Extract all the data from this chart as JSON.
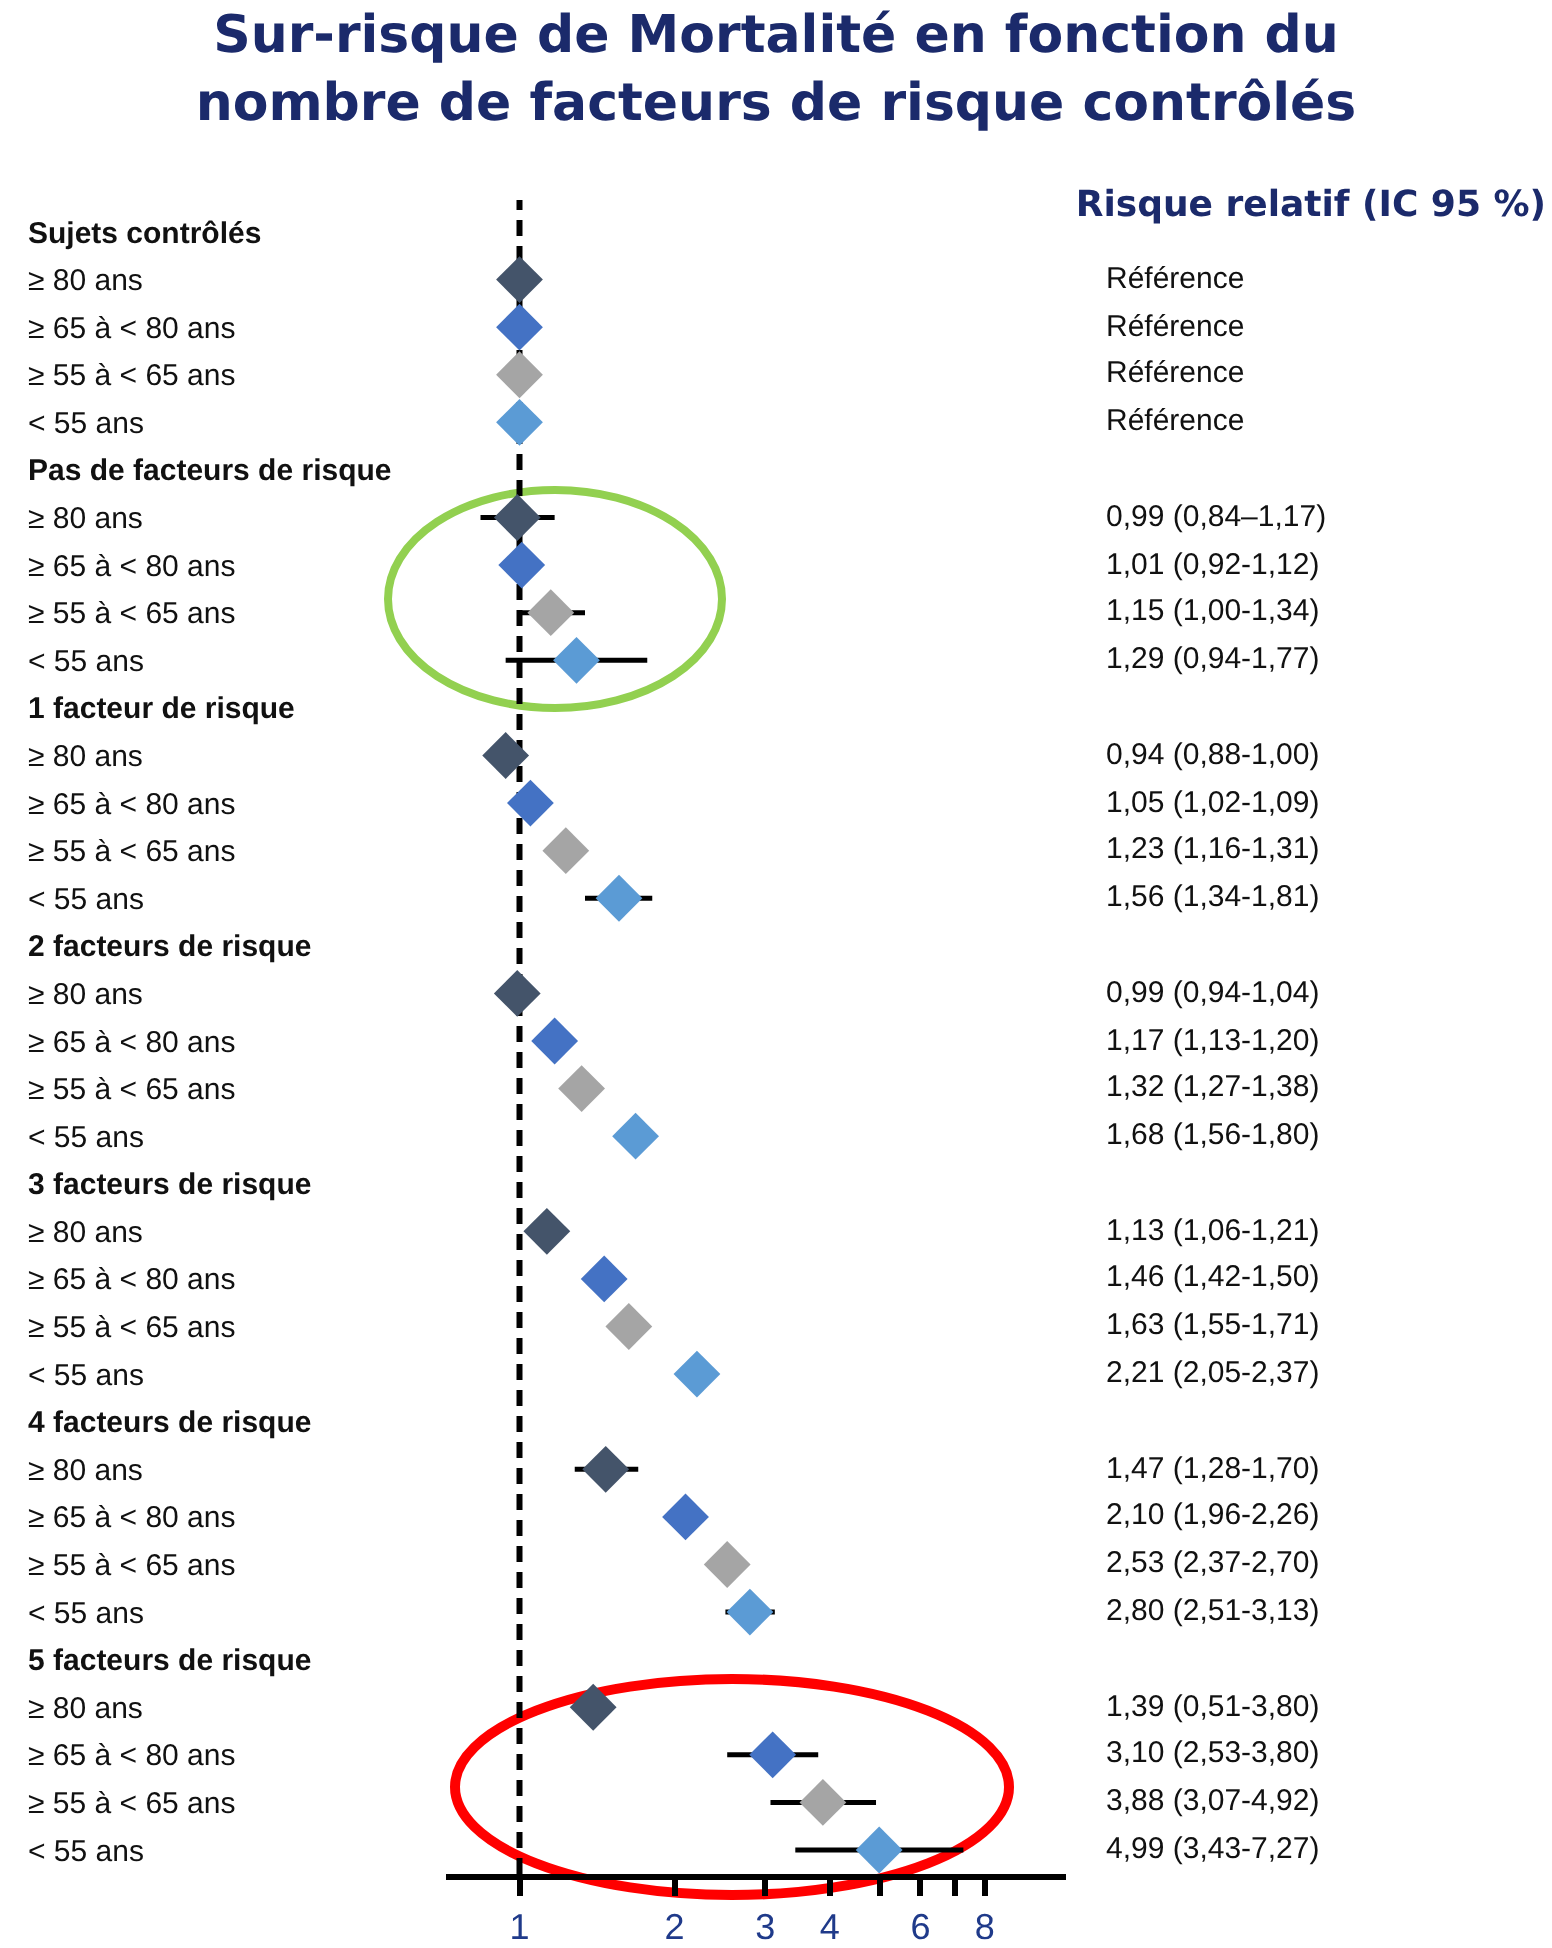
{
  "chart_data": [
    {
      "type": "scatter",
      "title": "Sur-risque de Mortalité en fonction du nombre de facteurs de risque contrôlés",
      "orientation": "horizontal",
      "log": "x",
      "marker": "diamond",
      "categories": [
        "Sujets contrôlés",
        "≥ 80 ans",
        "≥ 65 à < 80 ans",
        "≥ 55 à < 65 ans",
        "< 55 ans",
        "Pas de facteurs de risque",
        "≥ 80 ans",
        "≥ 65 à < 80 ans",
        "≥ 55 à < 65 ans",
        "< 55 ans",
        "1 facteur de risque",
        "≥ 80 ans",
        "≥ 65 à < 80 ans",
        "≥ 55 à < 65 ans",
        "< 55 ans",
        "2 facteurs de risque",
        "≥ 80 ans",
        "≥ 65 à < 80 ans",
        "≥ 55 à < 65 ans",
        "< 55 ans",
        "3 facteurs de risque",
        "≥ 80 ans",
        "≥ 65 à < 80 ans",
        "≥ 55 à < 65 ans",
        "< 55 ans",
        "4 facteurs de risque",
        "≥ 80 ans",
        "≥ 65 à < 80 ans",
        "≥ 55 à < 65 ans",
        "< 55 ans",
        "5 facteurs de risque",
        "≥ 80 ans",
        "≥ 65 à < 80 ans",
        "≥ 55 à < 65 ans",
        "< 55 ans"
      ],
      "values": [
        null,
        1,
        1,
        1,
        1,
        null,
        0.99,
        1.01,
        1.15,
        1.29,
        null,
        0.94,
        1.05,
        1.23,
        1.56,
        null,
        0.99,
        1.17,
        1.32,
        1.68,
        null,
        1.13,
        1.46,
        1.63,
        2.21,
        null,
        1.47,
        2.1,
        2.53,
        2.8,
        null,
        1.39,
        3.1,
        3.88,
        4.99
      ],
      "errors": [
        null,
        null,
        null,
        null,
        null,
        null,
        [
          0.84,
          1.17
        ],
        null,
        [
          1.0,
          1.34
        ],
        [
          0.94,
          1.77
        ],
        null,
        null,
        null,
        null,
        [
          1.34,
          1.81
        ],
        null,
        null,
        null,
        null,
        null,
        null,
        null,
        null,
        null,
        null,
        null,
        [
          1.28,
          1.7
        ],
        null,
        null,
        [
          2.51,
          3.13
        ],
        null,
        null,
        [
          2.53,
          3.8
        ],
        [
          3.07,
          4.92
        ],
        [
          3.43,
          7.27
        ]
      ],
      "colors": [
        null,
        "#44546a",
        "#4472c4",
        "#a5a5a5",
        "#5b9bd5",
        null,
        "#44546a",
        "#4472c4",
        "#a5a5a5",
        "#5b9bd5",
        null,
        "#44546a",
        "#4472c4",
        "#a5a5a5",
        "#5b9bd5",
        null,
        "#44546a",
        "#4472c4",
        "#a5a5a5",
        "#5b9bd5",
        null,
        "#44546a",
        "#4472c4",
        "#a5a5a5",
        "#5b9bd5",
        null,
        "#44546a",
        "#4472c4",
        "#a5a5a5",
        "#5b9bd5",
        null,
        "#44546a",
        "#4472c4",
        "#a5a5a5",
        "#5b9bd5"
      ],
      "xlim": [
        0.72,
        11.5
      ],
      "xticks": [
        1,
        2,
        3,
        4,
        {
          "value": 5,
          "label": null
        },
        6,
        {
          "value": 7,
          "label": null
        },
        8
      ],
      "ref_lines": [
        {
          "axis": "x",
          "value": 1,
          "line_style": "dashed",
          "color": "#000000"
        }
      ]
    },
    {
      "type": "other",
      "title": "Risque relatif (IC 95 %)",
      "annotations": [
        "Référence",
        "Référence",
        "Référence",
        "Référence",
        "0,99 (0,84–1,17)",
        "1,01 (0,92-1,12)",
        "1,15 (1,00-1,34)",
        "1,29 (0,94-1,77)",
        "0,94 (0,88-1,00)",
        "1,05 (1,02-1,09)",
        "1,23 (1,16-1,31)",
        "1,56 (1,34-1,81)",
        "0,99 (0,94-1,04)",
        "1,17 (1,13-1,20)",
        "1,32 (1,27-1,38)",
        "1,68 (1,56-1,80)",
        "1,13 (1,06-1,21)",
        "1,46 (1,42-1,50)",
        "1,63 (1,55-1,71)",
        "2,21 (2,05-2,37)",
        "1,47 (1,28-1,70)",
        "2,10 (1,96-2,26)",
        "2,53 (2,37-2,70)",
        "2,80 (2,51-3,13)",
        "1,39 (0,51-3,80)",
        "3,10 (2,53-3,80)",
        "3,88 (3,07-4,92)",
        "4,99 (3,43-7,27)"
      ]
    }
  ]
}
